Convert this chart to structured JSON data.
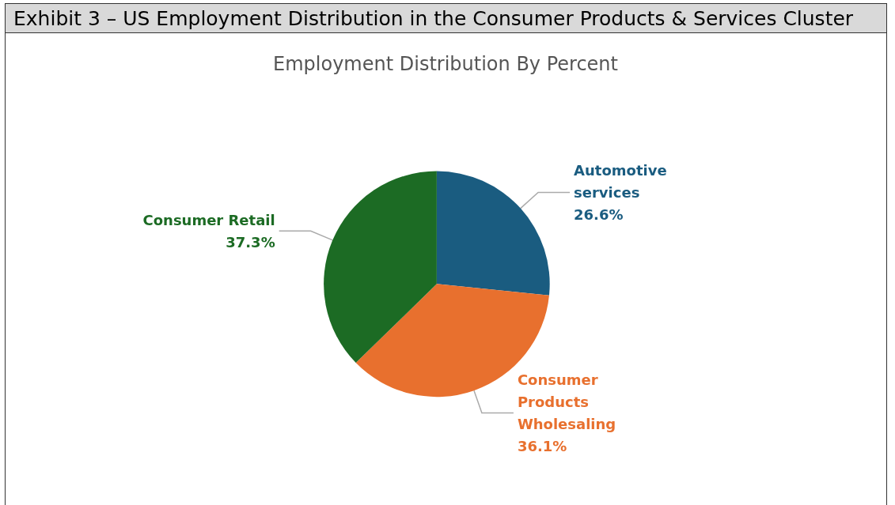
{
  "chart_data": {
    "type": "pie",
    "title": "Exhibit 3 – US Employment Distribution in the Consumer Products & Services Cluster",
    "subtitle": "Employment Distribution By Percent",
    "categories": [
      "Automotive services",
      "Consumer Products Wholesaling",
      "Consumer Retail"
    ],
    "values": [
      26.6,
      36.1,
      37.3
    ],
    "colors": [
      "#1a5c80",
      "#e8702e",
      "#1c6b24"
    ],
    "value_labels": [
      "26.6%",
      "36.1%",
      "37.3%"
    ]
  }
}
